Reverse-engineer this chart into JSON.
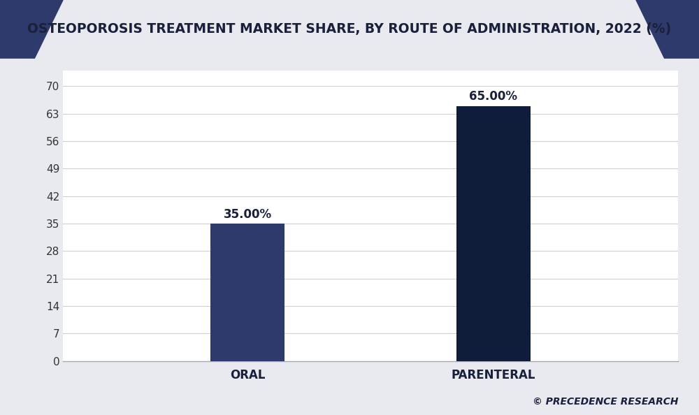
{
  "title": "OSTEOPOROSIS TREATMENT MARKET SHARE, BY ROUTE OF ADMINISTRATION, 2022 (%)",
  "categories": [
    "ORAL",
    "PARENTERAL"
  ],
  "values": [
    35.0,
    65.0
  ],
  "bar_colors": [
    "#2d3a6b",
    "#0f1d3a"
  ],
  "value_labels": [
    "35.00%",
    "65.00%"
  ],
  "yticks": [
    0,
    7,
    14,
    21,
    28,
    35,
    42,
    49,
    56,
    63,
    70
  ],
  "ylim": [
    0,
    74
  ],
  "background_color": "#e8eaf0",
  "plot_bg_color": "#ffffff",
  "header_bg_color": "#ffffff",
  "triangle_color": "#2d3a6b",
  "title_fontsize": 13.5,
  "tick_fontsize": 11,
  "label_fontsize": 12,
  "annotation_fontsize": 12,
  "watermark": "© PRECEDENCE RESEARCH",
  "grid_color": "#d0d0d0",
  "title_color": "#1a1f3a",
  "bar_width": 0.12,
  "x_positions": [
    0.3,
    0.7
  ]
}
